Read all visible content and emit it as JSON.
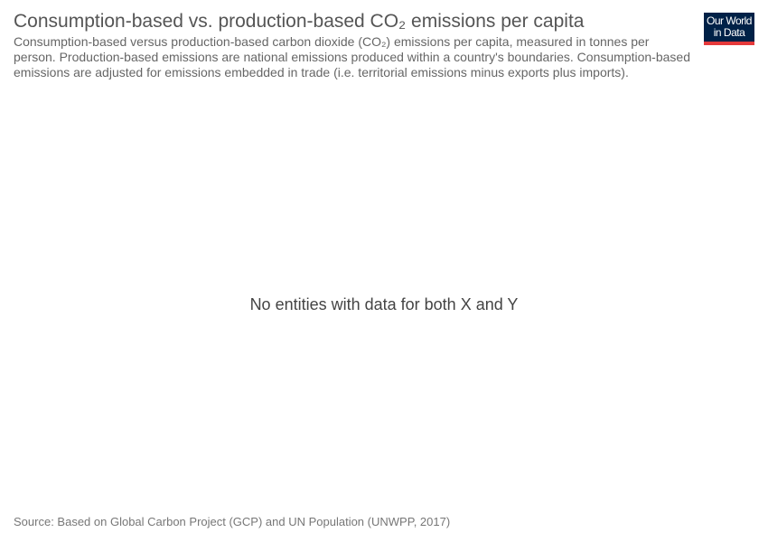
{
  "header": {
    "title": "Consumption-based vs. production-based CO₂ emissions per capita",
    "subtitle": "Consumption-based versus production-based carbon dioxide (CO₂) emissions per capita, measured in tonnes per person. Production-based emissions are national emissions produced within a country's boundaries. Consumption-based emissions are adjusted for emissions embedded in trade (i.e. territorial emissions minus exports plus imports).",
    "logo_line1": "Our World",
    "logo_line2": "in Data"
  },
  "chart_data": {
    "type": "scatter",
    "title": "Consumption-based vs. production-based CO₂ emissions per capita",
    "series": [],
    "empty_message": "No entities with data for both X and Y"
  },
  "footer": {
    "source": "Source: Based on Global Carbon Project (GCP) and UN Population (UNWPP, 2017)"
  },
  "colors": {
    "logo_background": "#002147",
    "logo_accent": "#e5393b",
    "text": "#555555"
  }
}
